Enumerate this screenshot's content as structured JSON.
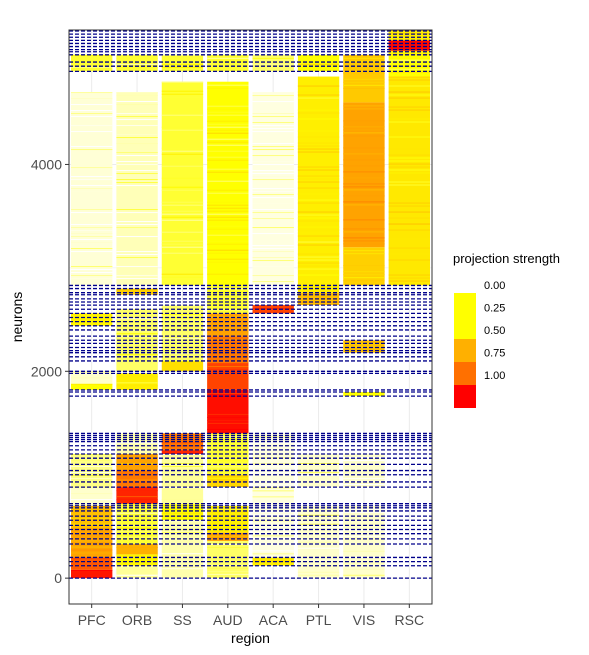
{
  "chart_data": {
    "type": "heatmap",
    "xlabel": "region",
    "ylabel": "neurons",
    "categories": [
      "PFC",
      "ORB",
      "SS",
      "AUD",
      "ACA",
      "PTL",
      "VIS",
      "RSC"
    ],
    "ylim": [
      -250,
      5300
    ],
    "yticks": [
      0,
      2000,
      4000
    ],
    "grid": true,
    "color_scale": {
      "title": "projection strength",
      "breaks": [
        0.0,
        0.25,
        0.5,
        0.75,
        1.0
      ],
      "labels": [
        "0.00",
        "0.25",
        "0.50",
        "0.75",
        "1.00"
      ],
      "colors": [
        "#ffffff",
        "#ffff00",
        "#ffb000",
        "#ff7000",
        "#ff0000"
      ]
    },
    "legend_position": "right",
    "divider_color": "#00008b",
    "cluster_boundaries": [
      0,
      120,
      160,
      200,
      330,
      380,
      430,
      470,
      510,
      560,
      600,
      650,
      680,
      700,
      720,
      880,
      930,
      1000,
      1040,
      1100,
      1160,
      1200,
      1240,
      1280,
      1320,
      1340,
      1360,
      1380,
      1400,
      1760,
      1800,
      1820,
      1980,
      2000,
      2100,
      2140,
      2180,
      2200,
      2230,
      2270,
      2300,
      2340,
      2400,
      2440,
      2480,
      2520,
      2560,
      2600,
      2640,
      2670,
      2700,
      2740,
      2760,
      2800,
      2830,
      4900,
      4950,
      4990,
      5060,
      5090,
      5110,
      5140,
      5170,
      5200,
      5230,
      5260,
      5290
    ],
    "blocks": [
      {
        "region": "PFC",
        "y0": 0,
        "y1": 80,
        "value": 0.95
      },
      {
        "region": "PFC",
        "y0": 80,
        "y1": 200,
        "value": 0.8
      },
      {
        "region": "PFC",
        "y0": 200,
        "y1": 480,
        "value": 0.55
      },
      {
        "region": "PFC",
        "y0": 480,
        "y1": 700,
        "value": 0.45
      },
      {
        "region": "PFC",
        "y0": 700,
        "y1": 880,
        "value": 0.05
      },
      {
        "region": "PFC",
        "y0": 880,
        "y1": 1200,
        "value": 0.12
      },
      {
        "region": "PFC",
        "y0": 1820,
        "y1": 1880,
        "value": 0.25
      },
      {
        "region": "PFC",
        "y0": 1880,
        "y1": 2000,
        "value": 0.05
      },
      {
        "region": "PFC",
        "y0": 2440,
        "y1": 2560,
        "value": 0.28
      },
      {
        "region": "PFC",
        "y0": 2830,
        "y1": 4700,
        "value": 0.04
      },
      {
        "region": "PFC",
        "y0": 4900,
        "y1": 5060,
        "value": 0.2
      },
      {
        "region": "ORB",
        "y0": 0,
        "y1": 120,
        "value": 0.1
      },
      {
        "region": "ORB",
        "y0": 120,
        "y1": 230,
        "value": 0.28
      },
      {
        "region": "ORB",
        "y0": 230,
        "y1": 330,
        "value": 0.5
      },
      {
        "region": "ORB",
        "y0": 330,
        "y1": 720,
        "value": 0.2
      },
      {
        "region": "ORB",
        "y0": 720,
        "y1": 880,
        "value": 0.92
      },
      {
        "region": "ORB",
        "y0": 880,
        "y1": 1040,
        "value": 0.72
      },
      {
        "region": "ORB",
        "y0": 1040,
        "y1": 1200,
        "value": 0.55
      },
      {
        "region": "ORB",
        "y0": 1200,
        "y1": 1400,
        "value": 0.08
      },
      {
        "region": "ORB",
        "y0": 1820,
        "y1": 1980,
        "value": 0.3
      },
      {
        "region": "ORB",
        "y0": 2000,
        "y1": 2600,
        "value": 0.15
      },
      {
        "region": "ORB",
        "y0": 2740,
        "y1": 2800,
        "value": 0.4
      },
      {
        "region": "ORB",
        "y0": 2830,
        "y1": 4700,
        "value": 0.07
      },
      {
        "region": "ORB",
        "y0": 4900,
        "y1": 5060,
        "value": 0.2
      },
      {
        "region": "SS",
        "y0": 0,
        "y1": 560,
        "value": 0.08
      },
      {
        "region": "SS",
        "y0": 560,
        "y1": 720,
        "value": 0.25
      },
      {
        "region": "SS",
        "y0": 720,
        "y1": 1200,
        "value": 0.1
      },
      {
        "region": "SS",
        "y0": 1200,
        "y1": 1240,
        "value": 0.92
      },
      {
        "region": "SS",
        "y0": 1240,
        "y1": 1400,
        "value": 0.72
      },
      {
        "region": "SS",
        "y0": 2000,
        "y1": 2100,
        "value": 0.35
      },
      {
        "region": "SS",
        "y0": 2100,
        "y1": 2640,
        "value": 0.15
      },
      {
        "region": "SS",
        "y0": 2830,
        "y1": 4800,
        "value": 0.2
      },
      {
        "region": "SS",
        "y0": 4900,
        "y1": 5060,
        "value": 0.2
      },
      {
        "region": "AUD",
        "y0": 0,
        "y1": 360,
        "value": 0.15
      },
      {
        "region": "AUD",
        "y0": 360,
        "y1": 440,
        "value": 0.55
      },
      {
        "region": "AUD",
        "y0": 440,
        "y1": 700,
        "value": 0.3
      },
      {
        "region": "AUD",
        "y0": 880,
        "y1": 1000,
        "value": 0.38
      },
      {
        "region": "AUD",
        "y0": 1000,
        "y1": 1400,
        "value": 0.2
      },
      {
        "region": "AUD",
        "y0": 1400,
        "y1": 1820,
        "value": 0.97
      },
      {
        "region": "AUD",
        "y0": 1820,
        "y1": 2080,
        "value": 0.85
      },
      {
        "region": "AUD",
        "y0": 2080,
        "y1": 2340,
        "value": 0.72
      },
      {
        "region": "AUD",
        "y0": 2340,
        "y1": 2560,
        "value": 0.55
      },
      {
        "region": "AUD",
        "y0": 2560,
        "y1": 2830,
        "value": 0.2
      },
      {
        "region": "AUD",
        "y0": 2830,
        "y1": 4800,
        "value": 0.25
      },
      {
        "region": "AUD",
        "y0": 4900,
        "y1": 5060,
        "value": 0.2
      },
      {
        "region": "ACA",
        "y0": 120,
        "y1": 200,
        "value": 0.3
      },
      {
        "region": "ACA",
        "y0": 200,
        "y1": 1400,
        "value": 0.03
      },
      {
        "region": "ACA",
        "y0": 2560,
        "y1": 2640,
        "value": 0.85
      },
      {
        "region": "ACA",
        "y0": 2830,
        "y1": 4700,
        "value": 0.03
      },
      {
        "region": "ACA",
        "y0": 4900,
        "y1": 5060,
        "value": 0.15
      },
      {
        "region": "PTL",
        "y0": 0,
        "y1": 700,
        "value": 0.05
      },
      {
        "region": "PTL",
        "y0": 880,
        "y1": 1200,
        "value": 0.05
      },
      {
        "region": "PTL",
        "y0": 2640,
        "y1": 2760,
        "value": 0.45
      },
      {
        "region": "PTL",
        "y0": 2760,
        "y1": 2830,
        "value": 0.3
      },
      {
        "region": "PTL",
        "y0": 2830,
        "y1": 4850,
        "value": 0.3
      },
      {
        "region": "PTL",
        "y0": 4900,
        "y1": 5060,
        "value": 0.25
      },
      {
        "region": "VIS",
        "y0": 0,
        "y1": 700,
        "value": 0.05
      },
      {
        "region": "VIS",
        "y0": 880,
        "y1": 1200,
        "value": 0.05
      },
      {
        "region": "VIS",
        "y0": 1760,
        "y1": 1800,
        "value": 0.25
      },
      {
        "region": "VIS",
        "y0": 2180,
        "y1": 2300,
        "value": 0.45
      },
      {
        "region": "VIS",
        "y0": 2830,
        "y1": 3200,
        "value": 0.4
      },
      {
        "region": "VIS",
        "y0": 3200,
        "y1": 4600,
        "value": 0.55
      },
      {
        "region": "VIS",
        "y0": 4600,
        "y1": 5060,
        "value": 0.42
      },
      {
        "region": "RSC",
        "y0": 2830,
        "y1": 4850,
        "value": 0.32
      },
      {
        "region": "RSC",
        "y0": 4850,
        "y1": 5100,
        "value": 0.25
      },
      {
        "region": "RSC",
        "y0": 5100,
        "y1": 5200,
        "value": 0.98
      },
      {
        "region": "RSC",
        "y0": 5200,
        "y1": 5300,
        "value": 0.3
      }
    ]
  }
}
